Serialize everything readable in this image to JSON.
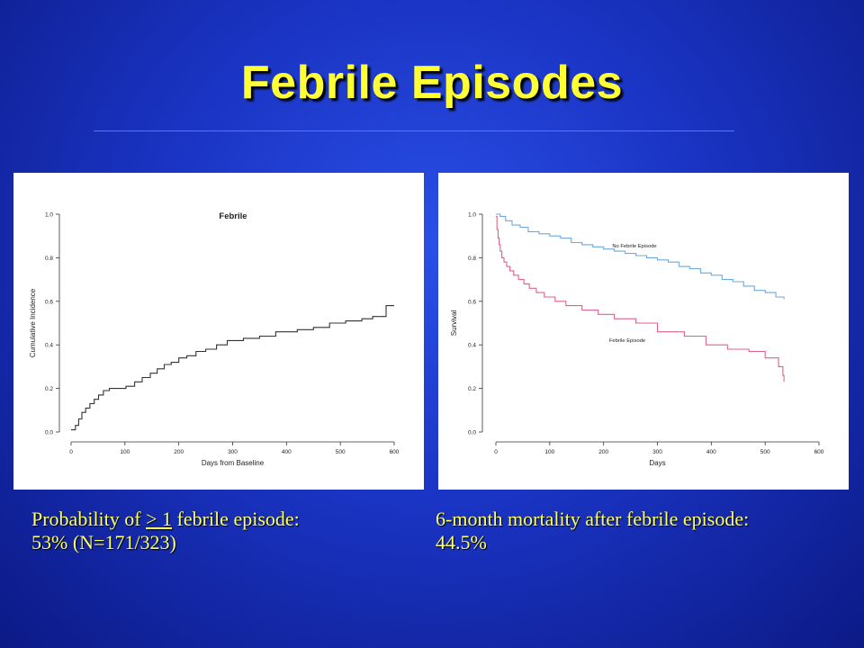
{
  "slide": {
    "title": "Febrile Episodes",
    "caption_left": {
      "line1_before": "Probability of",
      "line1_symbol": "> 1",
      "line1_after": "febrile episode:",
      "line2": "53% (N=171/323)"
    },
    "caption_right": {
      "line1": "6-month mortality after febrile episode:",
      "line2": "44.5%"
    }
  },
  "colors": {
    "title": "#ffff33",
    "caption": "#ffff66",
    "rule": "#e05050",
    "left_curve": "#333333",
    "no_febrile": "#6fa8dc",
    "febrile": "#e0608f"
  },
  "chart_data": [
    {
      "type": "line",
      "step": true,
      "title": "Febrile",
      "xlabel": "Days from Baseline",
      "ylabel": "Cumulative Incidence",
      "xlim": [
        0,
        600
      ],
      "ylim": [
        0,
        1.0
      ],
      "xticks": [
        "0",
        "100",
        "200",
        "300",
        "400",
        "500",
        "600"
      ],
      "yticks": [
        "0.0",
        "0.2",
        "0.4",
        "0.6",
        "0.8",
        "1.0"
      ],
      "series": [
        {
          "x": [
            0,
            8,
            14,
            20,
            27,
            35,
            43,
            51,
            60,
            71,
            88,
            102,
            118,
            132,
            147,
            160,
            173,
            186,
            200,
            215,
            232,
            250,
            270,
            290,
            320,
            350,
            380,
            420,
            450,
            480,
            510,
            540,
            560,
            580,
            585,
            600
          ],
          "y": [
            0.01,
            0.03,
            0.06,
            0.09,
            0.11,
            0.13,
            0.15,
            0.17,
            0.19,
            0.2,
            0.2,
            0.21,
            0.23,
            0.25,
            0.27,
            0.29,
            0.31,
            0.32,
            0.34,
            0.35,
            0.37,
            0.38,
            0.4,
            0.42,
            0.43,
            0.44,
            0.46,
            0.47,
            0.48,
            0.5,
            0.51,
            0.52,
            0.53,
            0.53,
            0.58,
            0.58
          ]
        }
      ]
    },
    {
      "type": "line",
      "step": true,
      "title": "",
      "xlabel": "Days",
      "ylabel": "Survival",
      "xlim": [
        0,
        600
      ],
      "ylim": [
        0,
        1.0
      ],
      "xticks": [
        "0",
        "100",
        "200",
        "300",
        "400",
        "500",
        "600"
      ],
      "yticks": [
        "0.0",
        "0.2",
        "0.4",
        "0.6",
        "0.8",
        "1.0"
      ],
      "series": [
        {
          "name": "No Febrile Episode",
          "x": [
            0,
            8,
            18,
            30,
            45,
            60,
            80,
            100,
            120,
            140,
            160,
            180,
            200,
            220,
            240,
            260,
            280,
            300,
            320,
            340,
            360,
            380,
            400,
            420,
            440,
            460,
            480,
            500,
            520,
            535
          ],
          "y": [
            1.0,
            0.99,
            0.97,
            0.95,
            0.94,
            0.92,
            0.91,
            0.9,
            0.89,
            0.87,
            0.86,
            0.85,
            0.84,
            0.83,
            0.82,
            0.81,
            0.8,
            0.79,
            0.78,
            0.76,
            0.75,
            0.73,
            0.72,
            0.7,
            0.69,
            0.67,
            0.65,
            0.64,
            0.62,
            0.61
          ]
        },
        {
          "name": "Febrile Episode",
          "x": [
            0,
            2,
            4,
            6,
            8,
            11,
            15,
            20,
            26,
            33,
            42,
            52,
            62,
            75,
            90,
            110,
            130,
            160,
            190,
            220,
            260,
            300,
            350,
            390,
            430,
            470,
            500,
            525,
            533,
            535
          ],
          "y": [
            0.99,
            0.93,
            0.89,
            0.86,
            0.83,
            0.8,
            0.78,
            0.76,
            0.74,
            0.72,
            0.7,
            0.68,
            0.66,
            0.64,
            0.62,
            0.6,
            0.58,
            0.56,
            0.54,
            0.52,
            0.5,
            0.46,
            0.44,
            0.4,
            0.38,
            0.37,
            0.34,
            0.3,
            0.26,
            0.23
          ]
        }
      ]
    }
  ]
}
